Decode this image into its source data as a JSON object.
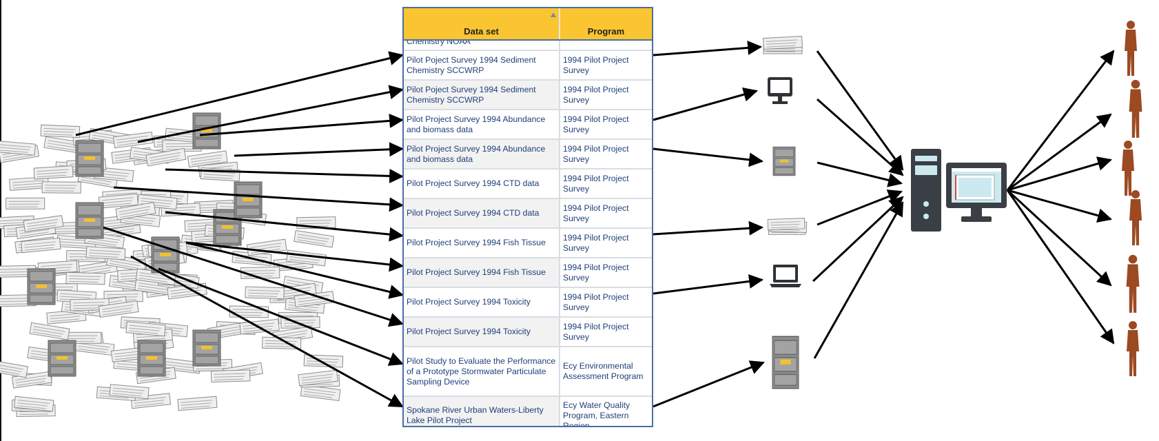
{
  "table": {
    "columns": [
      "Data set",
      "Program"
    ],
    "partial_top_row": {
      "data_set": "Chemistry NOAA",
      "program": ""
    },
    "rows": [
      {
        "data_set": "Pilot Poject Survey 1994 Sediment Chemistry SCCWRP",
        "program": "1994 Pilot Project Survey"
      },
      {
        "data_set": "Pilot Poject Survey 1994 Sediment Chemistry SCCWRP",
        "program": "1994 Pilot Project Survey"
      },
      {
        "data_set": "Pilot Project Survey 1994 Abundance and biomass data",
        "program": "1994 Pilot Project Survey"
      },
      {
        "data_set": "Pilot Project Survey 1994 Abundance and biomass data",
        "program": "1994 Pilot Project Survey"
      },
      {
        "data_set": "Pilot Project Survey 1994 CTD data",
        "program": "1994 Pilot Project Survey"
      },
      {
        "data_set": "Pilot Project Survey 1994 CTD data",
        "program": "1994 Pilot Project Survey"
      },
      {
        "data_set": "Pilot Project Survey 1994 Fish Tissue",
        "program": "1994 Pilot Project Survey"
      },
      {
        "data_set": "Pilot Project Survey 1994 Fish Tissue",
        "program": "1994 Pilot Project Survey"
      },
      {
        "data_set": "Pilot Project Survey 1994 Toxicity",
        "program": "1994 Pilot Project Survey"
      },
      {
        "data_set": "Pilot Project Survey 1994 Toxicity",
        "program": "1994 Pilot Project Survey"
      },
      {
        "data_set": "Pilot Study to Evaluate the Performance of a Prototype Stormwater Particulate Sampling Device",
        "program": "Ecy Environmental Assessment Program"
      },
      {
        "data_set": "Spokane River Urban Waters-Liberty Lake Pilot Project",
        "program": "Ecy Water Quality Program, Eastern Region"
      }
    ]
  },
  "middle_icons": [
    "paper-stack-icon",
    "monitor-icon",
    "file-cabinet-icon",
    "paper-stack-icon",
    "laptop-icon",
    "file-cabinet-icon"
  ],
  "hub_icon": "desktop-computer-icon",
  "people_icons": [
    "person-icon",
    "person-icon",
    "person-icon",
    "person-icon",
    "person-icon",
    "person-icon"
  ],
  "colors": {
    "header_bg": "#fbc531",
    "table_border": "#4b6da8",
    "link_text": "#1f3f78",
    "person": "#9c4a22",
    "computer_body": "#3a3f45",
    "computer_screen": "#cde9f0",
    "paper": "#e8e8e8",
    "cabinet": "#8a8a8a",
    "cabinet_label": "#f2c12e"
  }
}
